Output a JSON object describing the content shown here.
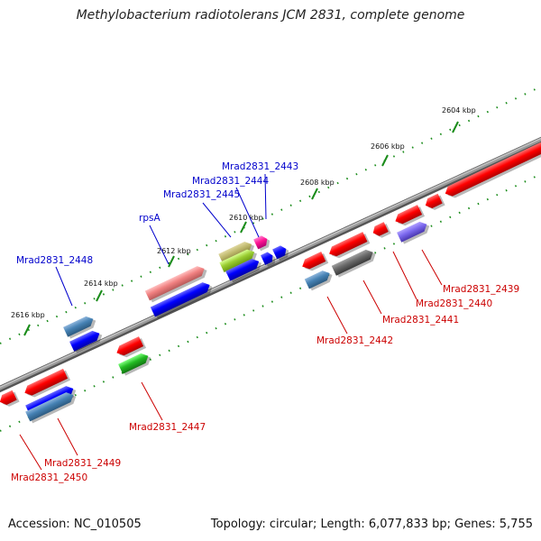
{
  "title": "Methylobacterium radiotolerans JCM 2831, complete genome",
  "footer": {
    "accession": "Accession: NC_010505",
    "topology": "Topology: circular; Length: 6,077,833 bp; Genes: 5,755"
  },
  "ruler_labels": [
    "2604 kbp",
    "2606 kbp",
    "2608 kbp",
    "2610 kbp",
    "2612 kbp",
    "2614 kbp",
    "2616 kbp"
  ],
  "gene_labels": {
    "forward": [
      "Mrad2831_2443",
      "Mrad2831_2444",
      "Mrad2831_2445",
      "rpsA",
      "Mrad2831_2448"
    ],
    "reverse": [
      "Mrad2831_2439",
      "Mrad2831_2440",
      "Mrad2831_2441",
      "Mrad2831_2442",
      "Mrad2831_2447",
      "Mrad2831_2449",
      "Mrad2831_2450"
    ]
  },
  "colors": {
    "forward_label": "#0000cc",
    "reverse_label": "#cc0000",
    "backbone": "#8a8a8a",
    "tick": "#1a8c1a"
  }
}
